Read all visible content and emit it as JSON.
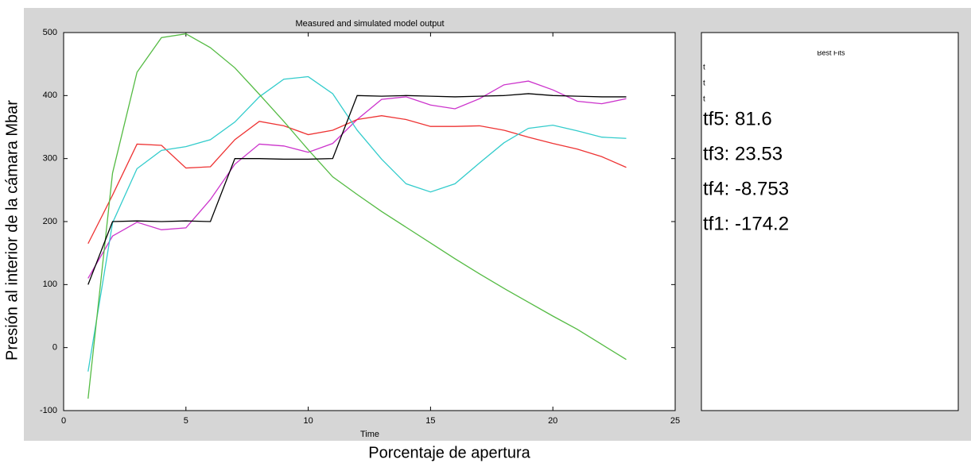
{
  "chart_data": {
    "type": "line",
    "title": "Measured and simulated model output",
    "xlabel": "Time",
    "outer_xlabel": "Porcentaje de apertura",
    "outer_ylabel": "Presión al interior de la cámara Mbar",
    "panel_title": "Best Fits",
    "panel_small_labels": [
      "t",
      "t",
      "t"
    ],
    "x": [
      1,
      2,
      3,
      4,
      5,
      6,
      7,
      8,
      9,
      10,
      11,
      12,
      13,
      14,
      15,
      16,
      17,
      18,
      19,
      20,
      21,
      22,
      23
    ],
    "xlim": [
      0,
      25
    ],
    "xticks": [
      0,
      5,
      10,
      15,
      20,
      25
    ],
    "ylim": [
      -100,
      500
    ],
    "yticks": [
      -100,
      0,
      100,
      200,
      300,
      400,
      500
    ],
    "measured": {
      "color": "#000000",
      "values": [
        100,
        200,
        201,
        200,
        201,
        200,
        300,
        300,
        299,
        299,
        300,
        400,
        399,
        400,
        399,
        398,
        399,
        400,
        403,
        400,
        399,
        398,
        398
      ]
    },
    "series": [
      {
        "name": "tf5: 81.6",
        "color": "#cc33cc",
        "values": [
          110,
          177,
          199,
          187,
          190,
          235,
          291,
          323,
          320,
          310,
          324,
          362,
          394,
          398,
          385,
          379,
          395,
          417,
          423,
          409,
          391,
          387,
          395
        ]
      },
      {
        "name": "tf3: 23.53",
        "color": "#ee3333",
        "values": [
          165,
          242,
          323,
          321,
          285,
          287,
          330,
          359,
          352,
          338,
          345,
          362,
          368,
          362,
          351,
          351,
          352,
          345,
          334,
          324,
          315,
          303,
          286
        ]
      },
      {
        "name": "tf4: -8.753",
        "color": "#33cccc",
        "values": [
          -38,
          198,
          284,
          313,
          319,
          330,
          358,
          398,
          426,
          430,
          403,
          345,
          299,
          260,
          247,
          260,
          293,
          325,
          348,
          353,
          344,
          334,
          332
        ]
      },
      {
        "name": "tf1: -174.2",
        "color": "#55bb44",
        "values": [
          -81,
          277,
          437,
          492,
          498,
          476,
          444,
          402,
          359,
          314,
          271,
          243,
          216,
          191,
          166,
          141,
          117,
          94,
          72,
          50,
          29,
          5,
          -19
        ]
      }
    ]
  }
}
